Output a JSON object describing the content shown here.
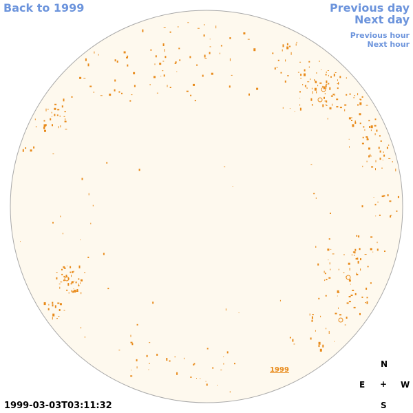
{
  "nav": {
    "back": "Back to 1999",
    "previous_day": "Previous day",
    "next_day": "Next day",
    "previous_hour": "Previous hour",
    "next_hour": "Next hour"
  },
  "disk": {
    "fill_color": "#fef9ee",
    "edge_color": "#a8a8a8",
    "feature_color": "#e88a1a",
    "year_label": "1999"
  },
  "compass": {
    "north": "N",
    "east": "E",
    "center": "+",
    "west": "W",
    "south": "S"
  },
  "timestamp": "1999-03-03T03:11:32"
}
